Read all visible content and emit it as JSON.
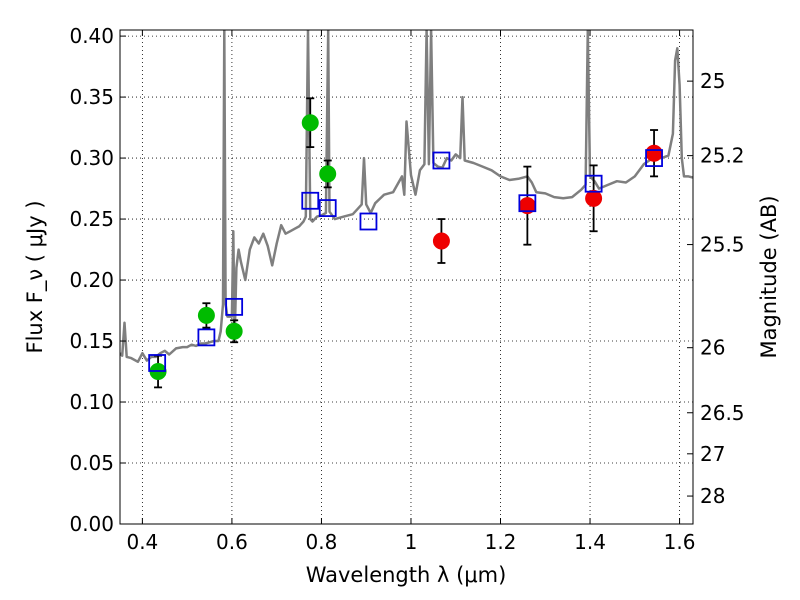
{
  "chart_data": {
    "type": "scatter",
    "title": "",
    "xlabel": "Wavelength  λ (μm)",
    "ylabel": "Flux  F_ν  ( μJy )",
    "y2label": "Magnitude (AB)",
    "xlim": [
      0.35,
      1.63
    ],
    "ylim": [
      0.0,
      0.405
    ],
    "xticks": [
      0.4,
      0.6,
      0.8,
      1.0,
      1.2,
      1.4,
      1.6
    ],
    "xtick_labels": [
      "0.4",
      "0.6",
      "0.8",
      "1",
      "1.2",
      "1.4",
      "1.6"
    ],
    "yticks": [
      0.0,
      0.05,
      0.1,
      0.15,
      0.2,
      0.25,
      0.3,
      0.35,
      0.4
    ],
    "ytick_labels": [
      "0.00",
      "0.05",
      "0.10",
      "0.15",
      "0.20",
      "0.25",
      "0.30",
      "0.35",
      "0.40"
    ],
    "mag_ticks": [
      {
        "mag": 25,
        "label": "25"
      },
      {
        "mag": 25.2,
        "label": "25.2"
      },
      {
        "mag": 25.5,
        "label": "25.5"
      },
      {
        "mag": 26,
        "label": "26"
      },
      {
        "mag": 26.5,
        "label": "26.5"
      },
      {
        "mag": 27,
        "label": "27"
      },
      {
        "mag": 28,
        "label": "28"
      }
    ],
    "grid": true,
    "colors": {
      "green": "#00bb00",
      "red": "#ee0000",
      "square": "#0000dd",
      "spectrum": "#7f7f7f"
    },
    "green_points": [
      {
        "x": 0.435,
        "y": 0.125,
        "yerr": 0.013
      },
      {
        "x": 0.543,
        "y": 0.171,
        "yerr": 0.01
      },
      {
        "x": 0.605,
        "y": 0.158,
        "yerr": 0.009
      },
      {
        "x": 0.775,
        "y": 0.329,
        "yerr": 0.02
      },
      {
        "x": 0.814,
        "y": 0.287,
        "yerr": 0.011
      }
    ],
    "red_points": [
      {
        "x": 1.068,
        "y": 0.232,
        "yerr": 0.018
      },
      {
        "x": 1.26,
        "y": 0.261,
        "yerr": 0.032
      },
      {
        "x": 1.408,
        "y": 0.267,
        "yerr": 0.027
      },
      {
        "x": 1.543,
        "y": 0.304,
        "yerr": 0.019
      }
    ],
    "model_squares": [
      {
        "x": 0.433,
        "y": 0.132
      },
      {
        "x": 0.543,
        "y": 0.153
      },
      {
        "x": 0.605,
        "y": 0.178
      },
      {
        "x": 0.775,
        "y": 0.265
      },
      {
        "x": 0.814,
        "y": 0.259
      },
      {
        "x": 0.905,
        "y": 0.248
      },
      {
        "x": 1.068,
        "y": 0.298
      },
      {
        "x": 1.26,
        "y": 0.263
      },
      {
        "x": 1.408,
        "y": 0.279
      },
      {
        "x": 1.543,
        "y": 0.3
      }
    ],
    "spectrum": [
      [
        0.35,
        0.14
      ],
      [
        0.355,
        0.138
      ],
      [
        0.36,
        0.165
      ],
      [
        0.365,
        0.137
      ],
      [
        0.375,
        0.136
      ],
      [
        0.39,
        0.133
      ],
      [
        0.4,
        0.14
      ],
      [
        0.41,
        0.134
      ],
      [
        0.42,
        0.137
      ],
      [
        0.43,
        0.137
      ],
      [
        0.44,
        0.14
      ],
      [
        0.45,
        0.142
      ],
      [
        0.46,
        0.139
      ],
      [
        0.475,
        0.144
      ],
      [
        0.49,
        0.145
      ],
      [
        0.5,
        0.145
      ],
      [
        0.51,
        0.147
      ],
      [
        0.52,
        0.146
      ],
      [
        0.53,
        0.148
      ],
      [
        0.54,
        0.148
      ],
      [
        0.55,
        0.149
      ],
      [
        0.56,
        0.15
      ],
      [
        0.57,
        0.15
      ],
      [
        0.575,
        0.158
      ],
      [
        0.58,
        0.18
      ],
      [
        0.583,
        0.405
      ],
      [
        0.586,
        0.18
      ],
      [
        0.59,
        0.17
      ],
      [
        0.6,
        0.17
      ],
      [
        0.603,
        0.24
      ],
      [
        0.606,
        0.15
      ],
      [
        0.61,
        0.21
      ],
      [
        0.615,
        0.225
      ],
      [
        0.62,
        0.215
      ],
      [
        0.63,
        0.2
      ],
      [
        0.64,
        0.225
      ],
      [
        0.65,
        0.235
      ],
      [
        0.66,
        0.23
      ],
      [
        0.67,
        0.238
      ],
      [
        0.68,
        0.228
      ],
      [
        0.69,
        0.212
      ],
      [
        0.7,
        0.23
      ],
      [
        0.71,
        0.245
      ],
      [
        0.72,
        0.238
      ],
      [
        0.73,
        0.24
      ],
      [
        0.74,
        0.242
      ],
      [
        0.75,
        0.244
      ],
      [
        0.76,
        0.248
      ],
      [
        0.765,
        0.252
      ],
      [
        0.77,
        0.405
      ],
      [
        0.775,
        0.25
      ],
      [
        0.78,
        0.248
      ],
      [
        0.79,
        0.252
      ],
      [
        0.8,
        0.253
      ],
      [
        0.81,
        0.255
      ],
      [
        0.815,
        0.405
      ],
      [
        0.818,
        0.256
      ],
      [
        0.83,
        0.25
      ],
      [
        0.85,
        0.252
      ],
      [
        0.87,
        0.254
      ],
      [
        0.88,
        0.258
      ],
      [
        0.89,
        0.262
      ],
      [
        0.895,
        0.3
      ],
      [
        0.9,
        0.262
      ],
      [
        0.91,
        0.255
      ],
      [
        0.92,
        0.263
      ],
      [
        0.94,
        0.27
      ],
      [
        0.96,
        0.272
      ],
      [
        0.98,
        0.285
      ],
      [
        0.985,
        0.27
      ],
      [
        0.99,
        0.33
      ],
      [
        1.0,
        0.286
      ],
      [
        1.01,
        0.27
      ],
      [
        1.02,
        0.29
      ],
      [
        1.03,
        0.295
      ],
      [
        1.035,
        0.405
      ],
      [
        1.04,
        0.295
      ],
      [
        1.045,
        0.405
      ],
      [
        1.05,
        0.296
      ],
      [
        1.06,
        0.293
      ],
      [
        1.07,
        0.292
      ],
      [
        1.08,
        0.3
      ],
      [
        1.09,
        0.298
      ],
      [
        1.1,
        0.303
      ],
      [
        1.11,
        0.3
      ],
      [
        1.115,
        0.35
      ],
      [
        1.12,
        0.298
      ],
      [
        1.14,
        0.296
      ],
      [
        1.16,
        0.293
      ],
      [
        1.18,
        0.29
      ],
      [
        1.2,
        0.285
      ],
      [
        1.22,
        0.282
      ],
      [
        1.24,
        0.283
      ],
      [
        1.26,
        0.285
      ],
      [
        1.27,
        0.28
      ],
      [
        1.28,
        0.272
      ],
      [
        1.3,
        0.271
      ],
      [
        1.32,
        0.268
      ],
      [
        1.34,
        0.267
      ],
      [
        1.36,
        0.268
      ],
      [
        1.38,
        0.274
      ],
      [
        1.39,
        0.278
      ],
      [
        1.395,
        0.405
      ],
      [
        1.4,
        0.285
      ],
      [
        1.41,
        0.281
      ],
      [
        1.42,
        0.275
      ],
      [
        1.44,
        0.278
      ],
      [
        1.46,
        0.281
      ],
      [
        1.48,
        0.28
      ],
      [
        1.5,
        0.285
      ],
      [
        1.52,
        0.295
      ],
      [
        1.54,
        0.3
      ],
      [
        1.56,
        0.3
      ],
      [
        1.575,
        0.302
      ],
      [
        1.585,
        0.32
      ],
      [
        1.59,
        0.38
      ],
      [
        1.595,
        0.39
      ],
      [
        1.6,
        0.36
      ],
      [
        1.605,
        0.3
      ],
      [
        1.61,
        0.285
      ],
      [
        1.62,
        0.285
      ],
      [
        1.63,
        0.284
      ]
    ]
  }
}
